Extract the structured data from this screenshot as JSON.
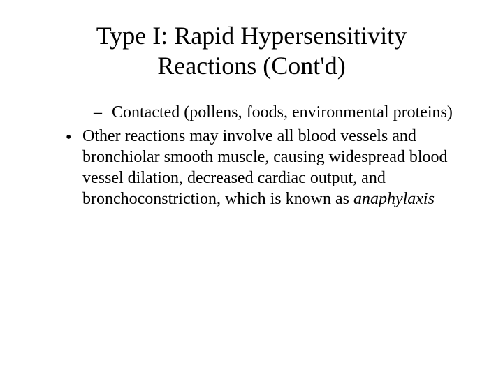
{
  "slide": {
    "title_line1": "Type I: Rapid Hypersensitivity",
    "title_line2": "Reactions (Cont'd)",
    "sub_bullet": {
      "marker": "–",
      "text": "Contacted (pollens, foods, environmental proteins)"
    },
    "main_bullet": {
      "marker": "•",
      "text_part1": "Other reactions may involve all blood vessels and bronchiolar smooth muscle, causing widespread blood vessel dilation, decreased cardiac output, and bronchoconstriction, which is known as ",
      "text_italic": "anaphylaxis"
    }
  },
  "styling": {
    "background_color": "#ffffff",
    "text_color": "#000000",
    "title_fontsize": 36,
    "body_fontsize": 24,
    "font_family": "Times New Roman"
  }
}
